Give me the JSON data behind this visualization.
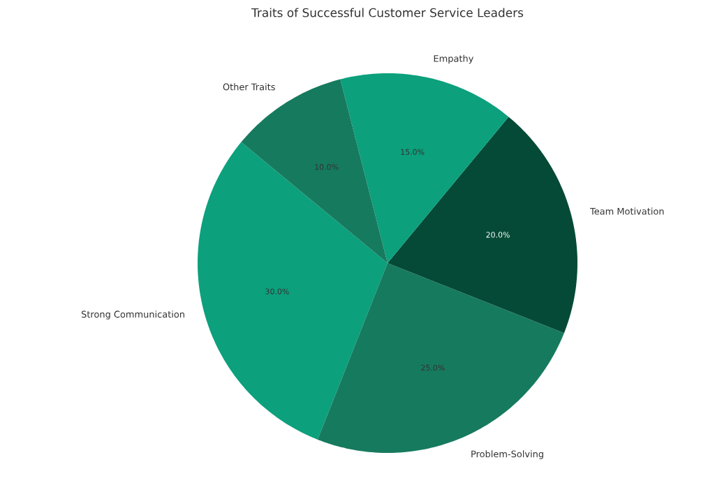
{
  "chart_data": {
    "type": "pie",
    "title": "Traits of Successful Customer Service Leaders",
    "categories": [
      "Strong Communication",
      "Problem-Solving",
      "Team Motivation",
      "Empathy",
      "Other Traits"
    ],
    "values": [
      30,
      25,
      20,
      15,
      10
    ],
    "value_labels": [
      "30.0%",
      "25.0%",
      "20.0%",
      "15.0%",
      "10.0%"
    ],
    "colors": [
      "#0ca07c",
      "#167a5e",
      "#044a36",
      "#0ca07c",
      "#167a5e"
    ],
    "legend": false
  }
}
